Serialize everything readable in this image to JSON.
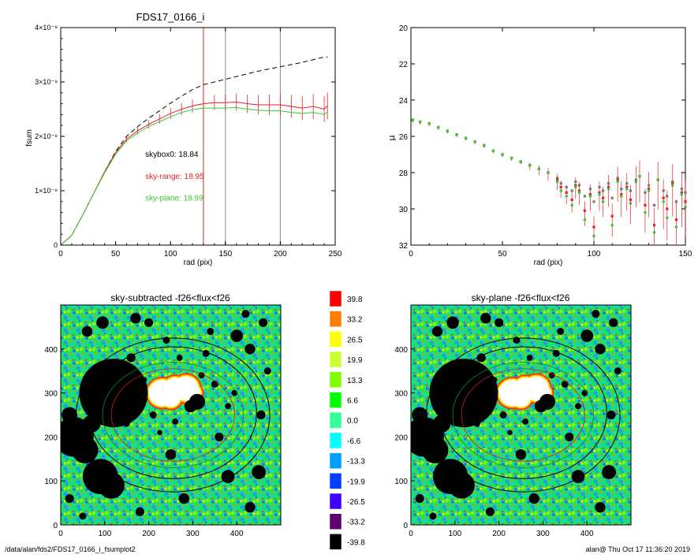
{
  "footer": {
    "left": "/data/alan/fds2/FDS17_0166_i_fsumplot2",
    "right": "alan@  Thu Oct 17 11:36:20 2019"
  },
  "colors": {
    "fsum_black": "#000000",
    "sky_range": "#e8202a",
    "sky_plane": "#33cc33",
    "vline_red": "#d9231d",
    "vline_grey": "#888888"
  },
  "chart_data": [
    {
      "type": "line",
      "title": "FDS17_0166_i",
      "xlabel": "rad (pix)",
      "ylabel": "fsum",
      "xlim": [
        0,
        250
      ],
      "ylim": [
        0,
        4e-08
      ],
      "xticks": [
        "0",
        "50",
        "100",
        "150",
        "200",
        "250"
      ],
      "yticks": [
        "0",
        "1×10⁻⁸",
        "2×10⁻⁸",
        "3×10⁻⁸",
        "4×10⁻⁸"
      ],
      "ytick_values": [
        0,
        1e-08,
        2e-08,
        3e-08,
        4e-08
      ],
      "vlines": [
        {
          "x": 130,
          "color": "red"
        },
        {
          "x": 150,
          "color": "grey"
        },
        {
          "x": 200,
          "color": "grey"
        }
      ],
      "annotations": [
        {
          "text": "skybox0: 18.84",
          "color": "black",
          "x": 77,
          "y": 1.62e-08
        },
        {
          "text": "sky-range: 18.95",
          "color": "red",
          "x": 77,
          "y": 1.22e-08
        },
        {
          "text": "sky-plane: 18.99",
          "color": "green",
          "x": 77,
          "y": 8.2e-09
        }
      ],
      "series": [
        {
          "name": "skybox0",
          "style": "dashed",
          "x": [
            0,
            10,
            20,
            30,
            40,
            50,
            60,
            70,
            80,
            90,
            100,
            110,
            120,
            130,
            140,
            150,
            160,
            170,
            180,
            190,
            200,
            210,
            220,
            230,
            240,
            243
          ],
          "y": [
            0,
            1.8e-09,
            5.5e-09,
            9.5e-09,
            1.35e-08,
            1.72e-08,
            2e-08,
            2.18e-08,
            2.33e-08,
            2.47e-08,
            2.61e-08,
            2.74e-08,
            2.86e-08,
            2.95e-08,
            3e-08,
            3.05e-08,
            3.1e-08,
            3.15e-08,
            3.2e-08,
            3.24e-08,
            3.28e-08,
            3.32e-08,
            3.36e-08,
            3.41e-08,
            3.46e-08,
            3.46e-08
          ]
        },
        {
          "name": "sky-range",
          "style": "errorbars",
          "x": [
            0,
            10,
            20,
            30,
            40,
            50,
            60,
            70,
            80,
            90,
            100,
            110,
            120,
            130,
            140,
            150,
            160,
            170,
            180,
            190,
            200,
            210,
            220,
            230,
            240,
            243
          ],
          "y": [
            0,
            1.8e-09,
            5.5e-09,
            9.5e-09,
            1.35e-08,
            1.7e-08,
            1.95e-08,
            2.1e-08,
            2.22e-08,
            2.32e-08,
            2.42e-08,
            2.5e-08,
            2.56e-08,
            2.6e-08,
            2.62e-08,
            2.62e-08,
            2.63e-08,
            2.6e-08,
            2.58e-08,
            2.58e-08,
            2.58e-08,
            2.55e-08,
            2.52e-08,
            2.55e-08,
            2.5e-08,
            2.56e-08
          ]
        },
        {
          "name": "sky-plane",
          "style": "solid",
          "x": [
            0,
            10,
            20,
            30,
            40,
            50,
            60,
            70,
            80,
            90,
            100,
            110,
            120,
            130,
            140,
            150,
            160,
            170,
            180,
            190,
            200,
            210,
            220,
            230,
            240,
            243
          ],
          "y": [
            0,
            1.8e-09,
            5.5e-09,
            9.5e-09,
            1.33e-08,
            1.67e-08,
            1.92e-08,
            2.06e-08,
            2.18e-08,
            2.27e-08,
            2.36e-08,
            2.44e-08,
            2.49e-08,
            2.52e-08,
            2.52e-08,
            2.52e-08,
            2.53e-08,
            2.5e-08,
            2.48e-08,
            2.47e-08,
            2.47e-08,
            2.44e-08,
            2.42e-08,
            2.44e-08,
            2.4e-08,
            2.45e-08
          ]
        }
      ]
    },
    {
      "type": "scatter",
      "title": "",
      "xlabel": "rad (pix)",
      "ylabel": "μ",
      "xlim": [
        0,
        150
      ],
      "ylim": [
        32,
        20
      ],
      "xticks": [
        "0",
        "50",
        "100",
        "150"
      ],
      "yticks": [
        "20",
        "22",
        "24",
        "26",
        "28",
        "30",
        "32"
      ],
      "ytick_values": [
        20,
        22,
        24,
        26,
        28,
        30,
        32
      ],
      "series": [
        {
          "name": "skybox0",
          "color": "grey",
          "x": [
            1,
            5,
            10,
            15,
            20,
            25,
            30,
            35,
            40,
            45,
            50,
            55,
            60,
            65,
            70,
            75,
            80,
            82,
            85,
            88,
            90,
            92,
            95,
            98,
            100,
            103,
            105,
            108,
            110,
            113,
            115,
            118,
            120,
            123,
            125,
            128,
            130,
            133,
            135,
            138,
            140,
            143,
            145,
            148,
            150
          ],
          "y": [
            25.1,
            25.2,
            25.3,
            25.5,
            25.7,
            25.9,
            26.1,
            26.3,
            26.5,
            26.8,
            27.0,
            27.2,
            27.4,
            27.6,
            27.8,
            28.0,
            28.3,
            28.6,
            28.8,
            29.0,
            28.5,
            28.7,
            29.3,
            28.9,
            29.6,
            28.8,
            29.0,
            28.6,
            29.4,
            28.3,
            28.9,
            28.6,
            29.0,
            28.4,
            28.2,
            29.1,
            28.7,
            29.8,
            28.4,
            29.0,
            29.3,
            28.5,
            29.6,
            28.9,
            29.1
          ]
        },
        {
          "name": "sky-range",
          "color": "red",
          "x": [
            1,
            5,
            10,
            15,
            20,
            25,
            30,
            35,
            40,
            45,
            50,
            55,
            60,
            65,
            70,
            75,
            80,
            82,
            85,
            88,
            90,
            92,
            95,
            98,
            100,
            103,
            105,
            108,
            110,
            113,
            115,
            118,
            120,
            123,
            125,
            128,
            130,
            133,
            135,
            138,
            140,
            143,
            145,
            148,
            150
          ],
          "y": [
            25.1,
            25.2,
            25.3,
            25.5,
            25.7,
            25.9,
            26.1,
            26.3,
            26.5,
            26.8,
            27.0,
            27.2,
            27.4,
            27.6,
            27.8,
            28.0,
            28.4,
            28.8,
            29.1,
            29.5,
            28.7,
            29.0,
            30.1,
            29.2,
            31.0,
            29.1,
            29.4,
            28.8,
            30.4,
            28.4,
            29.2,
            28.8,
            29.5,
            28.5,
            28.2,
            29.8,
            28.9,
            30.9,
            28.4,
            29.4,
            30.0,
            28.6,
            30.6,
            29.1,
            29.6
          ]
        },
        {
          "name": "sky-plane",
          "color": "green",
          "x": [
            1,
            5,
            10,
            15,
            20,
            25,
            30,
            35,
            40,
            45,
            50,
            55,
            60,
            65,
            70,
            75,
            80,
            82,
            85,
            88,
            90,
            92,
            95,
            98,
            100,
            103,
            105,
            108,
            110,
            113,
            115,
            118,
            120,
            123,
            125,
            128,
            130,
            133,
            135,
            138,
            140,
            143,
            145,
            148,
            150
          ],
          "y": [
            25.1,
            25.2,
            25.3,
            25.5,
            25.7,
            25.9,
            26.1,
            26.3,
            26.5,
            26.8,
            27.0,
            27.2,
            27.4,
            27.6,
            27.8,
            28.0,
            28.5,
            29.0,
            29.3,
            29.8,
            28.8,
            29.1,
            30.6,
            29.3,
            31.5,
            29.2,
            29.6,
            28.9,
            30.9,
            28.5,
            29.3,
            28.9,
            29.7,
            28.5,
            28.2,
            30.2,
            29.0,
            31.3,
            28.4,
            29.6,
            30.5,
            28.7,
            31.0,
            29.2,
            29.9
          ]
        }
      ]
    },
    {
      "type": "heatmap",
      "title": "sky-subtracted -f26<flux<f26",
      "xlim": [
        0,
        500
      ],
      "ylim": [
        0,
        500
      ],
      "xticks": [
        "0",
        "100",
        "200",
        "300",
        "400"
      ],
      "yticks": [
        "0",
        "100",
        "200",
        "300",
        "400"
      ]
    },
    {
      "type": "heatmap",
      "title": "sky-plane -f26<flux<f26",
      "xlim": [
        0,
        500
      ],
      "ylim": [
        0,
        500
      ],
      "xticks": [
        "0",
        "100",
        "200",
        "300",
        "400"
      ],
      "yticks": [
        "0",
        "100",
        "200",
        "300",
        "400"
      ]
    },
    {
      "type": "table",
      "title": "colorbar",
      "labels": [
        "39.8",
        "33.2",
        "26.5",
        "19.9",
        "13.3",
        "6.6",
        "0.0",
        "-6.6",
        "-13.3",
        "-19.9",
        "-26.5",
        "-33.2",
        "-39.8"
      ],
      "colors": [
        "#ff0000",
        "#ff8000",
        "#ffff00",
        "#ccff33",
        "#80ff00",
        "#00ff00",
        "#33ff99",
        "#00ffff",
        "#00a0ff",
        "#0040ff",
        "#4000ff",
        "#600070",
        "#000000"
      ]
    }
  ]
}
